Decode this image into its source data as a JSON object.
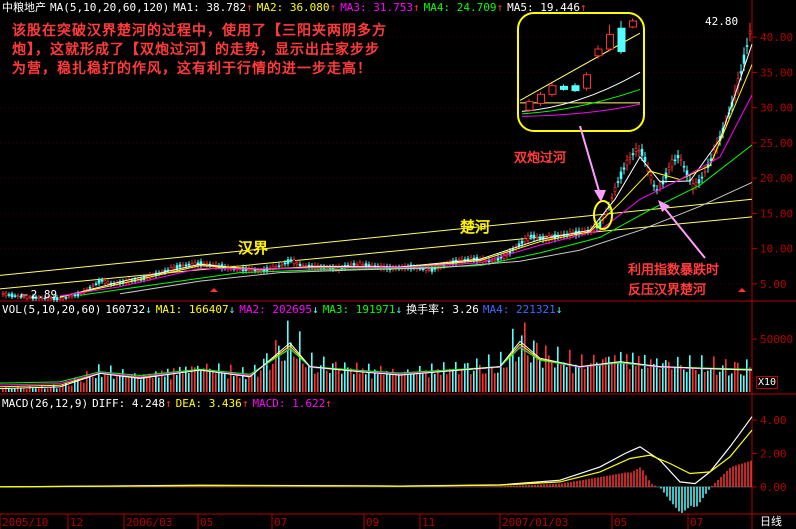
{
  "header": {
    "stock_name": "中粮地产",
    "ma_set": "MA(5,10,20,60,120)",
    "ma1": "MA1: 38.782",
    "ma2": "MA2: 36.080",
    "ma3": "MA3: 31.753",
    "ma4": "MA4: 24.709",
    "ma5": "MA5: 19.446"
  },
  "vol_header": {
    "label": "VOL(5,10,20,60)",
    "value": "160732",
    "ma1": "MA1: 166407",
    "ma2": "MA2: 202695",
    "ma3": "MA3: 191971",
    "turnover": "换手率: 3.26",
    "ma4": "MA4: 221321"
  },
  "macd_header": {
    "label": "MACD(26,12,9)",
    "diff": "DIFF: 4.248",
    "dea": "DEA: 3.436",
    "macd": "MACD: 1.622"
  },
  "annotations": {
    "main_text": "该股在突破汉界楚河的过程中，使用了【三阳夹两阴多方炮】，这就形成了【双炮过河】的走势，显示出庄家步步为营，稳扎稳打的作风，这有利于行情的进一步走高！",
    "hanjie": "汉界",
    "chuhe": "楚河",
    "shuangpao": "双炮过河",
    "fanya_line1": "利用指数暴跌时",
    "fanya_line2": "反压汉界楚河",
    "high_price": "42.80",
    "low_price": "2.89",
    "vol_scale": "X10",
    "period": "日线"
  },
  "colors": {
    "up": "#ff3232",
    "down": "#54ffff",
    "ma1": "#ffffff",
    "ma2": "#ffff00",
    "ma3": "#ff00ff",
    "ma4": "#00ff00",
    "ma5": "#c8c8c8",
    "axis": "#b40000",
    "channel": "#ffff66"
  },
  "chart_data": [
    {
      "type": "candlestick",
      "title": "中粮地产",
      "y_ticks": [
        "5.00",
        "10.00",
        "15.00",
        "20.00",
        "25.00",
        "30.00",
        "35.00",
        "40.00"
      ],
      "ylim": [
        3,
        43
      ],
      "x_ticks": [
        "2005/10",
        "12",
        "2006/03",
        "05",
        "07",
        "09",
        "11",
        "2007/01/03",
        "05",
        "07"
      ],
      "price_path": [
        [
          0,
          3.6
        ],
        [
          20,
          3.2
        ],
        [
          40,
          3.0
        ],
        [
          60,
          2.89
        ],
        [
          80,
          3.6
        ],
        [
          100,
          5.5
        ],
        [
          110,
          5.0
        ],
        [
          120,
          5.2
        ],
        [
          140,
          5.6
        ],
        [
          160,
          6.6
        ],
        [
          180,
          7.6
        ],
        [
          200,
          7.9
        ],
        [
          215,
          7.6
        ],
        [
          230,
          7.2
        ],
        [
          250,
          7.0
        ],
        [
          260,
          6.8
        ],
        [
          280,
          7.6
        ],
        [
          290,
          8.4
        ],
        [
          300,
          7.6
        ],
        [
          320,
          7.3
        ],
        [
          340,
          7.2
        ],
        [
          350,
          7.8
        ],
        [
          370,
          7.6
        ],
        [
          390,
          7.2
        ],
        [
          410,
          7.4
        ],
        [
          430,
          7.0
        ],
        [
          450,
          8.0
        ],
        [
          470,
          8.6
        ],
        [
          490,
          8.2
        ],
        [
          505,
          9.0
        ],
        [
          520,
          10.8
        ],
        [
          530,
          11.8
        ],
        [
          545,
          11.4
        ],
        [
          560,
          11.9
        ],
        [
          575,
          12.2
        ],
        [
          590,
          12.6
        ],
        [
          600,
          13.5
        ],
        [
          608,
          16.0
        ],
        [
          615,
          18.8
        ],
        [
          625,
          22.0
        ],
        [
          635,
          24.0
        ],
        [
          642,
          23.6
        ],
        [
          648,
          20.8
        ],
        [
          655,
          18.2
        ],
        [
          662,
          19.4
        ],
        [
          670,
          22.0
        ],
        [
          678,
          23.2
        ],
        [
          685,
          21.0
        ],
        [
          692,
          18.8
        ],
        [
          700,
          19.8
        ],
        [
          710,
          22.6
        ],
        [
          720,
          26.0
        ],
        [
          730,
          30.0
        ],
        [
          740,
          35.0
        ],
        [
          748,
          40.0
        ],
        [
          752,
          42.8
        ]
      ],
      "ma_lines": {
        "ma1": [
          [
            60,
            3.1
          ],
          [
            120,
            5.3
          ],
          [
            200,
            7.8
          ],
          [
            260,
            7.0
          ],
          [
            320,
            7.5
          ],
          [
            400,
            7.4
          ],
          [
            480,
            8.5
          ],
          [
            540,
            11.3
          ],
          [
            590,
            12.6
          ],
          [
            615,
            17.0
          ],
          [
            640,
            23.0
          ],
          [
            660,
            19.5
          ],
          [
            690,
            19.6
          ],
          [
            720,
            25.5
          ],
          [
            752,
            39.0
          ]
        ],
        "ma2": [
          [
            60,
            3.2
          ],
          [
            120,
            5.0
          ],
          [
            200,
            7.6
          ],
          [
            260,
            7.1
          ],
          [
            320,
            7.4
          ],
          [
            400,
            7.3
          ],
          [
            480,
            8.3
          ],
          [
            540,
            11.0
          ],
          [
            590,
            12.4
          ],
          [
            620,
            16.5
          ],
          [
            650,
            21.0
          ],
          [
            680,
            19.8
          ],
          [
            710,
            21.8
          ],
          [
            752,
            36.1
          ]
        ],
        "ma3": [
          [
            60,
            3.3
          ],
          [
            120,
            4.6
          ],
          [
            200,
            7.2
          ],
          [
            260,
            7.1
          ],
          [
            320,
            7.3
          ],
          [
            400,
            7.3
          ],
          [
            480,
            8.0
          ],
          [
            540,
            10.5
          ],
          [
            600,
            12.6
          ],
          [
            640,
            17.0
          ],
          [
            680,
            19.8
          ],
          [
            720,
            23.0
          ],
          [
            752,
            31.8
          ]
        ],
        "ma4": [
          [
            80,
            3.4
          ],
          [
            160,
            5.0
          ],
          [
            240,
            6.6
          ],
          [
            320,
            7.0
          ],
          [
            400,
            7.2
          ],
          [
            480,
            7.6
          ],
          [
            540,
            9.4
          ],
          [
            600,
            11.6
          ],
          [
            650,
            15.5
          ],
          [
            700,
            19.0
          ],
          [
            752,
            24.7
          ]
        ],
        "ma5": [
          [
            120,
            3.6
          ],
          [
            200,
            5.4
          ],
          [
            280,
            6.6
          ],
          [
            360,
            7.0
          ],
          [
            440,
            7.3
          ],
          [
            520,
            8.2
          ],
          [
            580,
            9.8
          ],
          [
            640,
            12.6
          ],
          [
            700,
            16.0
          ],
          [
            752,
            19.4
          ]
        ]
      },
      "channel_lines": [
        {
          "from": [
            0,
            6.2
          ],
          "to": [
            752,
            17.0
          ]
        },
        {
          "from": [
            0,
            4.3
          ],
          "to": [
            752,
            14.5
          ]
        }
      ],
      "inset_candles": [
        {
          "o": 27.6,
          "c": 29.0,
          "h": 29.4,
          "l": 27.3
        },
        {
          "o": 28.7,
          "c": 30.2,
          "h": 30.6,
          "l": 28.3
        },
        {
          "o": 30.2,
          "c": 31.6,
          "h": 32.0,
          "l": 29.8
        },
        {
          "o": 31.5,
          "c": 31.0,
          "h": 31.8,
          "l": 30.8
        },
        {
          "o": 31.6,
          "c": 30.8,
          "h": 32.0,
          "l": 30.6
        },
        {
          "o": 31.2,
          "c": 33.4,
          "h": 33.8,
          "l": 30.8
        },
        {
          "o": 36.5,
          "c": 37.6,
          "h": 38.2,
          "l": 36.0
        },
        {
          "o": 37.6,
          "c": 40.0,
          "h": 41.6,
          "l": 37.2
        },
        {
          "o": 41.0,
          "c": 37.2,
          "h": 42.2,
          "l": 36.8
        },
        {
          "o": 41.2,
          "c": 42.2,
          "h": 42.6,
          "l": 41.0
        }
      ]
    },
    {
      "type": "bar",
      "title": "VOL(5,10,20,60)",
      "y_ticks": [
        "50000"
      ],
      "volume_profile": [
        [
          0,
          4
        ],
        [
          60,
          6
        ],
        [
          100,
          22
        ],
        [
          140,
          16
        ],
        [
          200,
          26
        ],
        [
          250,
          18
        ],
        [
          290,
          58
        ],
        [
          310,
          30
        ],
        [
          360,
          24
        ],
        [
          400,
          20
        ],
        [
          460,
          26
        ],
        [
          500,
          30
        ],
        [
          520,
          60
        ],
        [
          540,
          40
        ],
        [
          580,
          30
        ],
        [
          620,
          36
        ],
        [
          660,
          30
        ],
        [
          700,
          28
        ],
        [
          752,
          26
        ]
      ]
    },
    {
      "type": "bar",
      "title": "MACD(26,12,9)",
      "y_ticks": [
        "4.00",
        "2.00",
        "0.00"
      ],
      "ylim": [
        -1.5,
        4.6
      ],
      "diff_path": [
        [
          0,
          0
        ],
        [
          100,
          0.05
        ],
        [
          200,
          0.1
        ],
        [
          300,
          0.08
        ],
        [
          400,
          0.05
        ],
        [
          500,
          0.12
        ],
        [
          560,
          0.4
        ],
        [
          600,
          1.2
        ],
        [
          625,
          2.0
        ],
        [
          640,
          2.4
        ],
        [
          660,
          1.6
        ],
        [
          680,
          0.3
        ],
        [
          695,
          0.2
        ],
        [
          710,
          0.9
        ],
        [
          730,
          2.4
        ],
        [
          752,
          4.2
        ]
      ],
      "dea_path": [
        [
          0,
          0
        ],
        [
          100,
          0.04
        ],
        [
          200,
          0.08
        ],
        [
          300,
          0.07
        ],
        [
          400,
          0.05
        ],
        [
          500,
          0.1
        ],
        [
          560,
          0.3
        ],
        [
          600,
          0.9
        ],
        [
          630,
          1.7
        ],
        [
          650,
          1.9
        ],
        [
          670,
          1.4
        ],
        [
          690,
          0.8
        ],
        [
          710,
          0.9
        ],
        [
          730,
          1.8
        ],
        [
          752,
          3.4
        ]
      ]
    }
  ]
}
